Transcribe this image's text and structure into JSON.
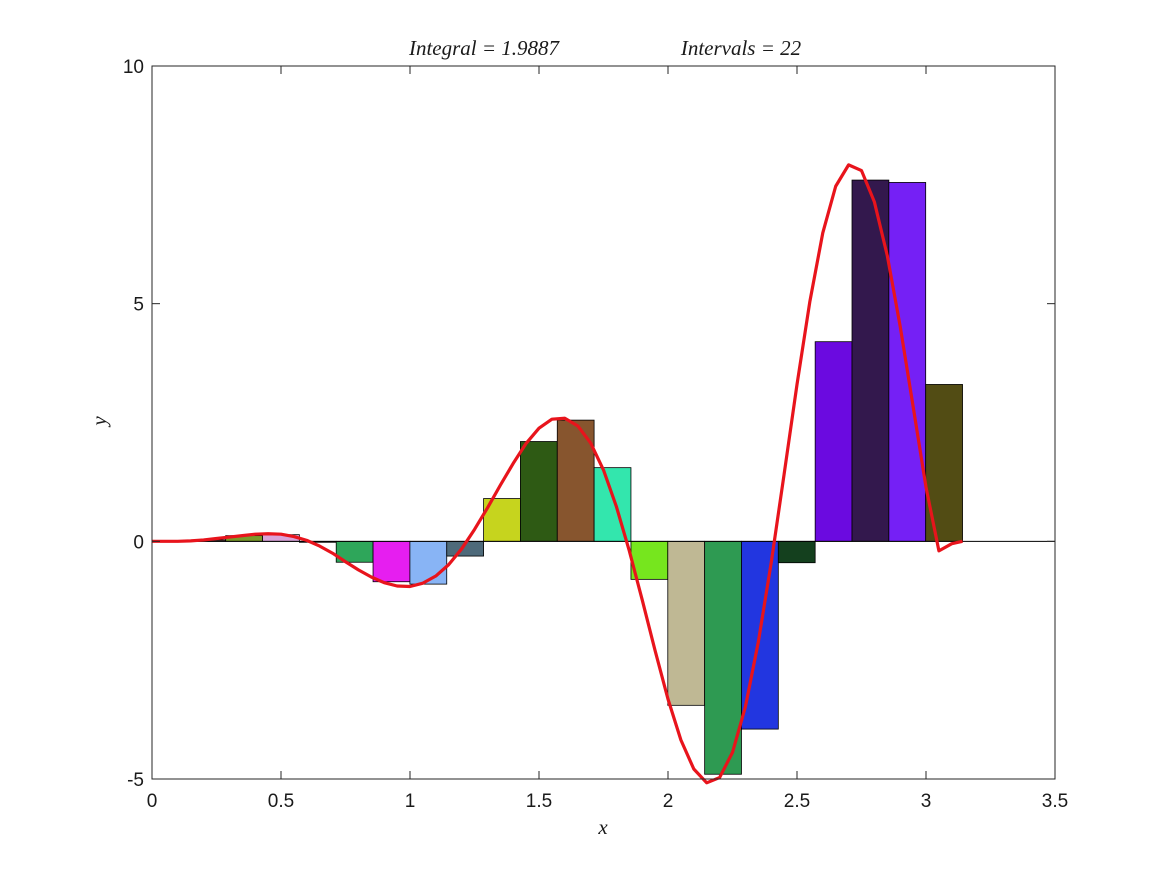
{
  "chart_data": {
    "type": "bar",
    "title_left": "Integral = 1.9887",
    "title_right": "Intervals = 22",
    "xlabel": "x",
    "ylabel": "y",
    "xlim": [
      0,
      3.5
    ],
    "ylim": [
      -5,
      10
    ],
    "xticks": [
      0,
      0.5,
      1,
      1.5,
      2,
      2.5,
      3,
      3.5
    ],
    "xtick_labels": [
      "0",
      "0.5",
      "1",
      "1.5",
      "2",
      "2.5",
      "3",
      "3.5"
    ],
    "yticks": [
      -5,
      0,
      5,
      10
    ],
    "ytick_labels": [
      "-5",
      "0",
      "5",
      "10"
    ],
    "grid": false,
    "curve_color": "#e8141c",
    "bar_edge_color": "#000000",
    "bar_width": 0.1428,
    "bar_left_x": [
      0.0,
      0.1428,
      0.2856,
      0.4284,
      0.5712,
      0.714,
      0.8568,
      0.9996,
      1.1424,
      1.2852,
      1.428,
      1.5708,
      1.7136,
      1.8564,
      1.9992,
      2.142,
      2.2848,
      2.4276,
      2.5704,
      2.7132,
      2.856,
      2.9988
    ],
    "bar_values": [
      0.0,
      0.03,
      0.12,
      0.14,
      -0.02,
      -0.44,
      -0.85,
      -0.9,
      -0.31,
      0.9,
      2.1,
      2.55,
      1.55,
      -0.8,
      -3.45,
      -4.9,
      -3.95,
      -0.45,
      4.2,
      7.6,
      7.55,
      3.3
    ],
    "bar_colors": [
      "#3d2a2a",
      "#5a3a3a",
      "#7a9a2a",
      "#d9a3d9",
      "#3a3a3a",
      "#2ea65a",
      "#e61ef0",
      "#88b4f5",
      "#4e6a7a",
      "#c6d41e",
      "#2e5a14",
      "#87552e",
      "#33e6ad",
      "#76e61e",
      "#bfb894",
      "#2e9a52",
      "#2236e0",
      "#14401e",
      "#6b0ae0",
      "#33184d",
      "#7520f5",
      "#524c14"
    ],
    "series": [
      {
        "type": "line",
        "x": [
          0,
          0.05,
          0.1,
          0.15,
          0.2,
          0.25,
          0.3,
          0.35,
          0.4,
          0.45,
          0.5,
          0.55,
          0.6,
          0.65,
          0.7,
          0.75,
          0.8,
          0.85,
          0.9,
          0.95,
          1.0,
          1.05,
          1.1,
          1.15,
          1.2,
          1.25,
          1.3,
          1.35,
          1.4,
          1.45,
          1.5,
          1.55,
          1.6,
          1.65,
          1.7,
          1.75,
          1.8,
          1.85,
          1.9,
          1.95,
          2.0,
          2.05,
          2.1,
          2.15,
          2.2,
          2.25,
          2.3,
          2.35,
          2.4,
          2.45,
          2.5,
          2.55,
          2.6,
          2.65,
          2.7,
          2.75,
          2.8,
          2.85,
          2.9,
          2.95,
          3.0,
          3.05,
          3.1,
          3.1416
        ],
        "y": [
          0,
          0.0,
          0.0,
          0.01,
          0.03,
          0.06,
          0.09,
          0.12,
          0.15,
          0.16,
          0.15,
          0.1,
          0.02,
          -0.1,
          -0.25,
          -0.43,
          -0.6,
          -0.75,
          -0.87,
          -0.94,
          -0.95,
          -0.88,
          -0.73,
          -0.49,
          -0.16,
          0.25,
          0.7,
          1.18,
          1.64,
          2.06,
          2.38,
          2.57,
          2.59,
          2.43,
          2.07,
          1.5,
          0.73,
          -0.2,
          -1.23,
          -2.3,
          -3.32,
          -4.18,
          -4.79,
          -5.08,
          -4.97,
          -4.44,
          -3.48,
          -2.12,
          -0.45,
          1.41,
          3.3,
          5.05,
          6.49,
          7.47,
          7.92,
          7.8,
          7.14,
          6.01,
          4.52,
          2.84,
          1.14,
          -0.2,
          -0.05,
          0
        ]
      }
    ]
  }
}
